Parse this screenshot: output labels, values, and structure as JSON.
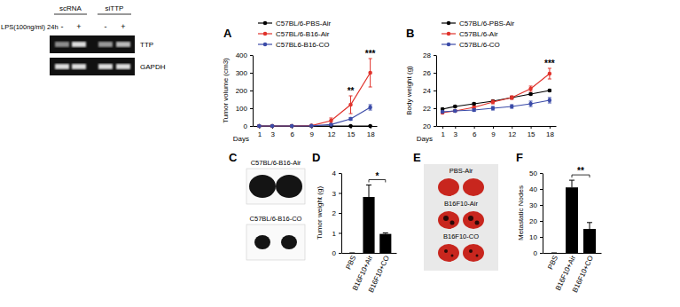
{
  "gel": {
    "headers": [
      "scRNA",
      "siTTP"
    ],
    "condition": "LPS(100ng/ml) 24h",
    "signs": [
      "-",
      "+",
      "-",
      "+"
    ],
    "rows": [
      "TTP",
      "GAPDH"
    ]
  },
  "chart_data": [
    {
      "type": "line",
      "title": "A",
      "xlabel": "Days",
      "ylabel": "Tumor volume (cm3)",
      "x": [
        1,
        3,
        6,
        9,
        12,
        15,
        18
      ],
      "xlim": [
        0,
        19
      ],
      "xticks": [
        1,
        3,
        6,
        9,
        12,
        15,
        18
      ],
      "ylim": [
        0,
        400
      ],
      "yticks": [
        0,
        100,
        200,
        300,
        400
      ],
      "legend": "upper left",
      "series": [
        {
          "name": "C57BL/6-PBS-Air",
          "color": "#000000",
          "marker": "circle",
          "values": [
            0,
            0,
            0,
            0,
            0,
            0,
            0
          ],
          "errors": [
            0,
            0,
            0,
            0,
            0,
            0,
            0
          ]
        },
        {
          "name": "C57BL/6-B16-Air",
          "color": "#e0322b",
          "marker": "circle",
          "values": [
            0,
            0,
            0,
            2,
            30,
            120,
            300
          ],
          "errors": [
            0,
            0,
            0,
            1,
            15,
            50,
            80
          ]
        },
        {
          "name": "C57BL6-B16-CO",
          "color": "#3b4ba8",
          "marker": "circle",
          "values": [
            0,
            0,
            0,
            1,
            8,
            40,
            105
          ],
          "errors": [
            0,
            0,
            0,
            1,
            3,
            8,
            15
          ]
        }
      ],
      "annotations": [
        {
          "x": 15,
          "text": "**"
        },
        {
          "x": 18,
          "text": "***"
        }
      ]
    },
    {
      "type": "line",
      "title": "B",
      "xlabel": "Days",
      "ylabel": "Body weight (g)",
      "x": [
        1,
        3,
        6,
        9,
        12,
        15,
        18
      ],
      "xlim": [
        0,
        19
      ],
      "xticks": [
        1,
        3,
        6,
        9,
        12,
        15,
        18
      ],
      "ylim": [
        20,
        28
      ],
      "yticks": [
        20,
        22,
        24,
        26,
        28
      ],
      "legend": "upper left",
      "series": [
        {
          "name": "C57BL/6-PBS-Air",
          "color": "#000000",
          "marker": "circle",
          "values": [
            21.9,
            22.2,
            22.5,
            22.8,
            23.2,
            23.6,
            24.0
          ],
          "errors": [
            0.1,
            0.1,
            0.1,
            0.1,
            0.1,
            0.1,
            0.1
          ]
        },
        {
          "name": "C57BL/6-Air",
          "color": "#e0322b",
          "marker": "circle",
          "values": [
            21.5,
            21.7,
            22.1,
            22.7,
            23.2,
            24.2,
            25.9
          ],
          "errors": [
            0.1,
            0.1,
            0.15,
            0.2,
            0.2,
            0.3,
            0.6
          ]
        },
        {
          "name": "C57BL/6-CO",
          "color": "#3b4ba8",
          "marker": "circle",
          "values": [
            21.6,
            21.7,
            21.8,
            22.0,
            22.2,
            22.5,
            22.9
          ],
          "errors": [
            0.1,
            0.1,
            0.15,
            0.2,
            0.2,
            0.3,
            0.3
          ]
        }
      ],
      "annotations": [
        {
          "x": 18,
          "text": "***"
        }
      ]
    },
    {
      "type": "bar",
      "title": "D",
      "ylabel": "Tumor weight (g)",
      "categories": [
        "PBS",
        "B16F10+Air",
        "B16F10+CO"
      ],
      "values": [
        0,
        2.8,
        0.95
      ],
      "errors": [
        0,
        0.6,
        0.05
      ],
      "color": "#000000",
      "ylim": [
        0,
        4
      ],
      "yticks": [
        0,
        1,
        2,
        3,
        4
      ],
      "annotations": [
        {
          "between": [
            "B16F10+Air",
            "B16F10+CO"
          ],
          "text": "*"
        }
      ]
    },
    {
      "type": "bar",
      "title": "F",
      "ylabel": "Metastatic Nodes",
      "categories": [
        "PBS",
        "B16F10+Air",
        "B16F10+CO"
      ],
      "values": [
        0,
        41,
        15
      ],
      "errors": [
        0,
        4.5,
        4
      ],
      "color": "#000000",
      "ylim": [
        0,
        50
      ],
      "yticks": [
        0,
        10,
        20,
        30,
        40,
        50
      ],
      "annotations": [
        {
          "between": [
            "B16F10+Air",
            "B16F10+CO"
          ],
          "text": "**"
        }
      ]
    }
  ],
  "photos": [
    {
      "title": "C",
      "labels": [
        "C57BL/6-B16-Air",
        "C57BL/6-B16-CO"
      ]
    },
    {
      "title": "E",
      "labels": [
        "PBS-Air",
        "B16F10-Air",
        "B16F10-CO"
      ]
    }
  ]
}
